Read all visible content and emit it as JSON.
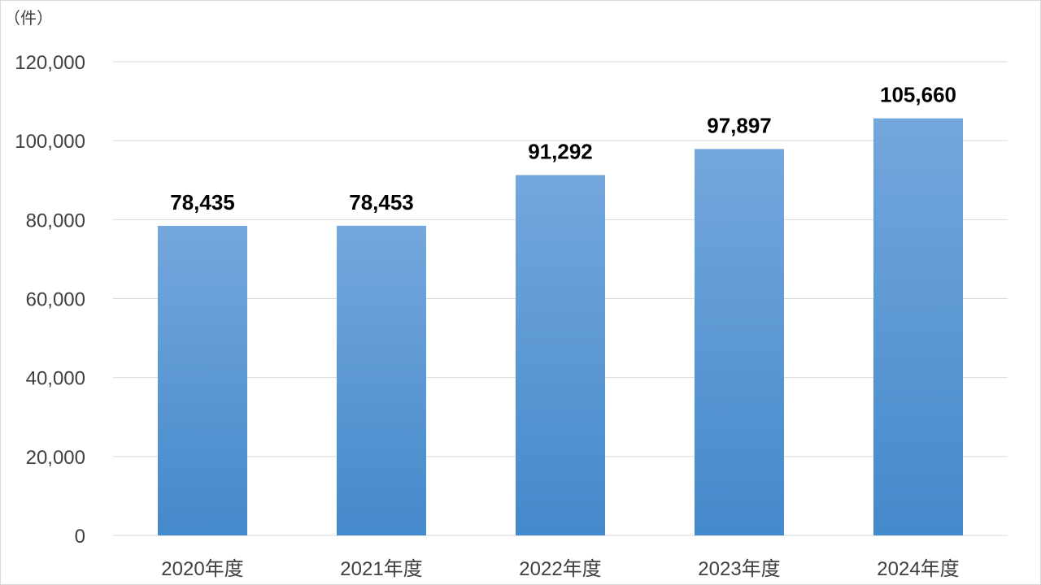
{
  "chart_data": {
    "type": "bar",
    "title": "",
    "xlabel": "",
    "ylabel": "（件）",
    "categories": [
      "2020年度",
      "2021年度",
      "2022年度",
      "2023年度",
      "2024年度"
    ],
    "values": [
      78435,
      78453,
      91292,
      97897,
      105660
    ],
    "value_labels": [
      "78,435",
      "78,453",
      "91,292",
      "97,897",
      "105,660"
    ],
    "ylim": [
      0,
      120000
    ],
    "yticks": [
      0,
      20000,
      40000,
      60000,
      80000,
      100000,
      120000
    ],
    "ytick_labels": [
      "0",
      "20,000",
      "40,000",
      "60,000",
      "80,000",
      "100,000",
      "120,000"
    ],
    "grid": true,
    "legend": "none",
    "bar_color_top": "#74a7dc",
    "bar_color_bottom": "#4489cb"
  }
}
